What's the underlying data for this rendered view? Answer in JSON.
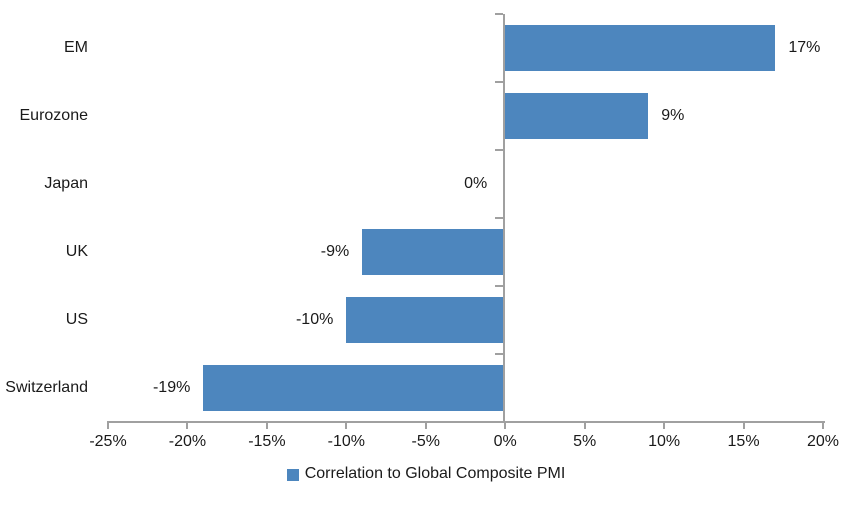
{
  "chart_data": {
    "type": "bar",
    "orientation": "horizontal",
    "title": "",
    "categories": [
      "EM",
      "Eurozone",
      "Japan",
      "UK",
      "US",
      "Switzerland"
    ],
    "values": [
      17,
      9,
      0,
      -9,
      -10,
      -19
    ],
    "value_labels": [
      "17%",
      "9%",
      "0%",
      "-9%",
      "-10%",
      "-19%"
    ],
    "series": [
      {
        "name": "Correlation to Global Composite PMI",
        "values": [
          17,
          9,
          0,
          -9,
          -10,
          -19
        ]
      }
    ],
    "xlabel": "",
    "ylabel": "",
    "xlim": [
      -25,
      20
    ],
    "x_ticks": [
      -25,
      -20,
      -15,
      -10,
      -5,
      0,
      5,
      10,
      15,
      20
    ],
    "x_tick_labels": [
      "-25%",
      "-20%",
      "-15%",
      "-10%",
      "-5%",
      "0%",
      "5%",
      "10%",
      "15%",
      "20%"
    ],
    "grid": false,
    "legend": {
      "label": "Correlation to Global Composite PMI",
      "position": "bottom-center",
      "swatch_color": "#4D86BE"
    },
    "colors": {
      "bar": "#4D86BE",
      "axis": "#A0A0A0",
      "text": "#1A1A1A",
      "background": "#FFFFFF"
    }
  }
}
